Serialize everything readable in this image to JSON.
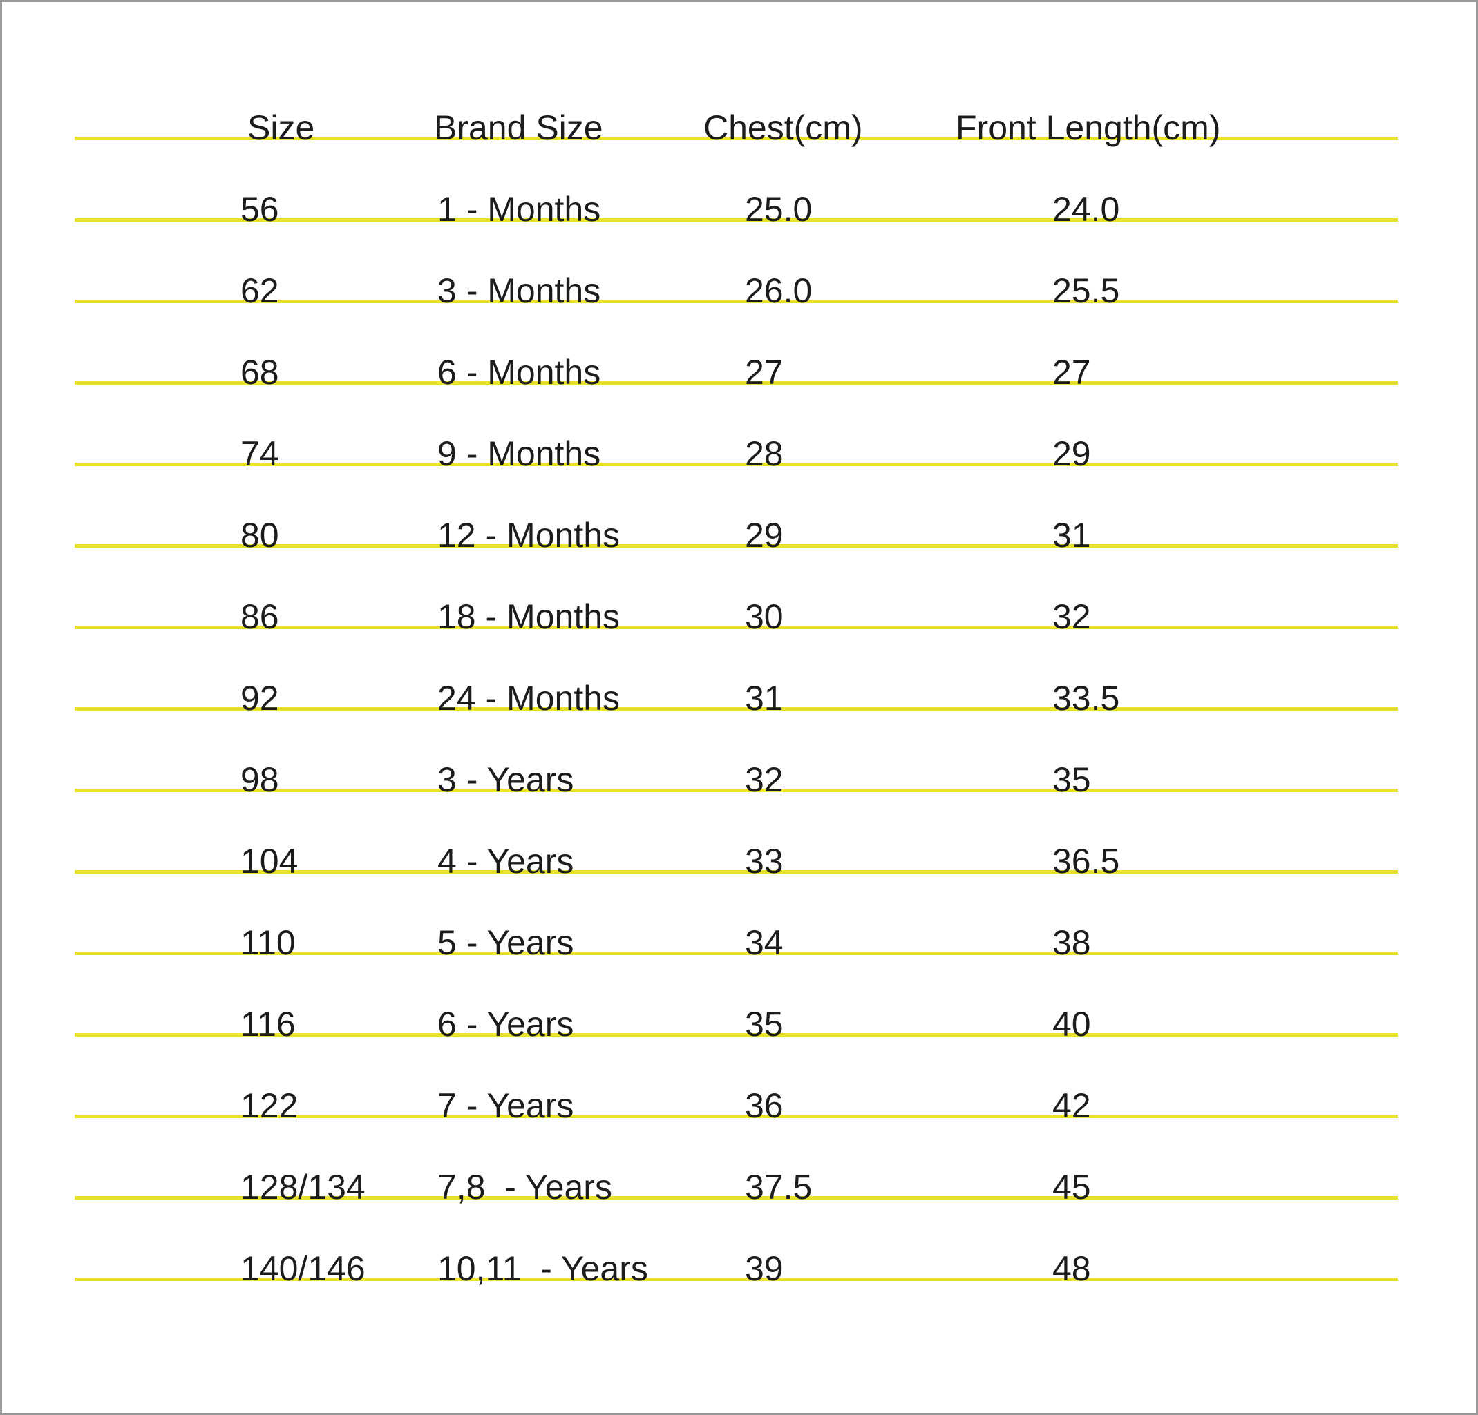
{
  "chart_data": {
    "type": "table",
    "columns": [
      "Size",
      "Brand Size",
      "Chest(cm)",
      "Front Length(cm)"
    ],
    "rows": [
      [
        "56",
        "1 - Months",
        "25.0",
        "24.0"
      ],
      [
        "62",
        "3 - Months",
        "26.0",
        "25.5"
      ],
      [
        "68",
        "6 - Months",
        "27",
        "27"
      ],
      [
        "74",
        "9 - Months",
        "28",
        "29"
      ],
      [
        "80",
        "12 - Months",
        "29",
        "31"
      ],
      [
        "86",
        "18 - Months",
        "30",
        "32"
      ],
      [
        "92",
        "24 - Months",
        "31",
        "33.5"
      ],
      [
        "98",
        "3 - Years",
        "32",
        "35"
      ],
      [
        "104",
        "4 - Years",
        "33",
        "36.5"
      ],
      [
        "110",
        "5 - Years",
        "34",
        "38"
      ],
      [
        "116",
        "6 - Years",
        "35",
        "40"
      ],
      [
        "122",
        "7 - Years",
        "36",
        "42"
      ],
      [
        "128/134",
        "7,8  - Years",
        "37.5",
        "45"
      ],
      [
        "140/146",
        "10,11  - Years",
        "39",
        "48"
      ]
    ]
  },
  "style": {
    "rule_color": "#e8e22f",
    "text_color": "#1c1c1c",
    "border_color": "#999999",
    "background": "#ffffff"
  }
}
